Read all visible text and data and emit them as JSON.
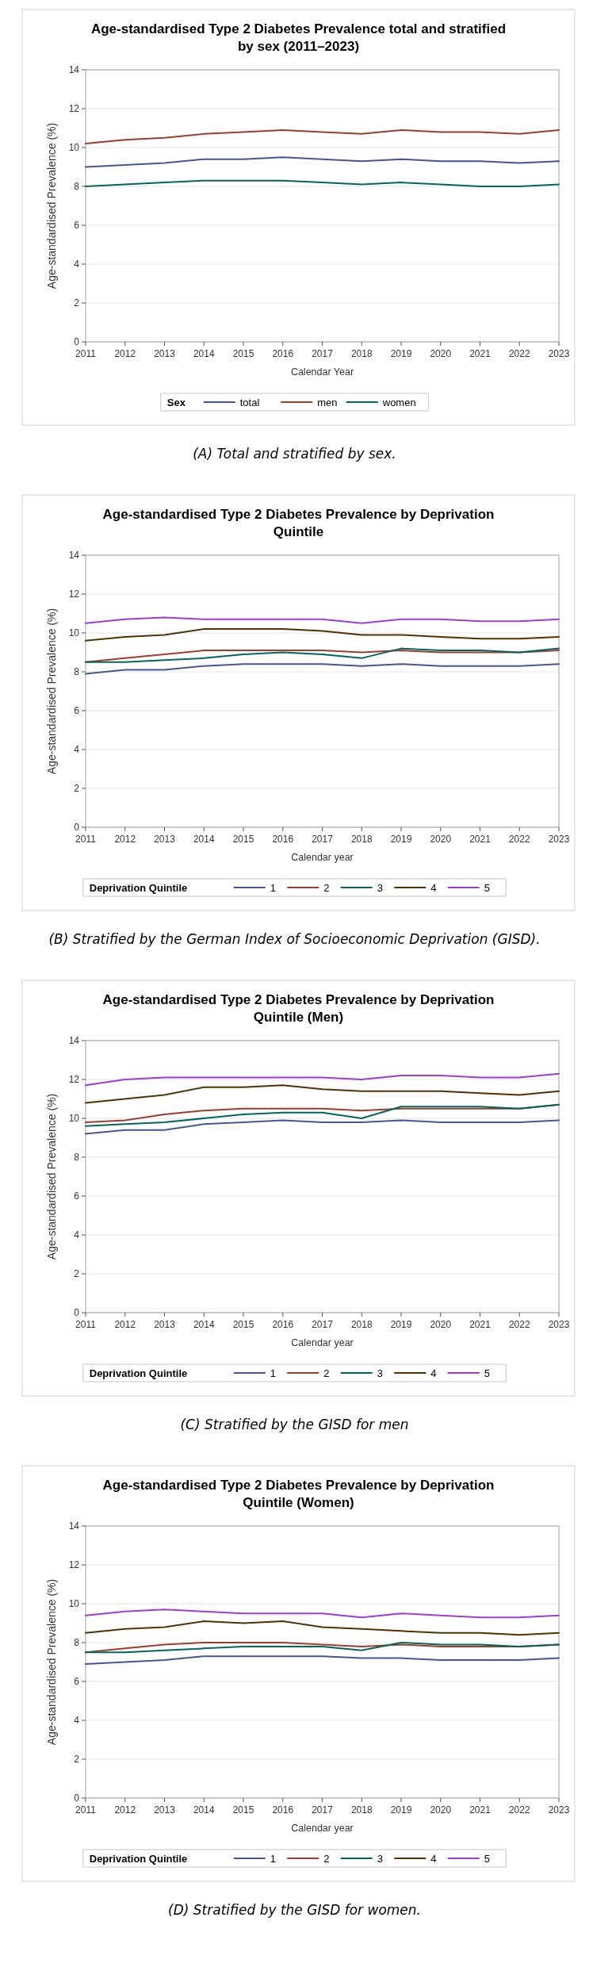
{
  "chart_data": [
    {
      "type": "line",
      "title": "Age-standardised Type 2 Diabetes Prevalence total and stratified by sex (2011–2023)",
      "xlabel": "Calendar Year",
      "ylabel": "Age-standardised Prevalence (%)",
      "legend_title": "Sex",
      "legend": "bottom",
      "grid": "y",
      "line_style": "solid",
      "x": [
        2011,
        2012,
        2013,
        2014,
        2015,
        2016,
        2017,
        2018,
        2019,
        2020,
        2021,
        2022,
        2023
      ],
      "xlim": [
        2011,
        2023
      ],
      "xticks": [
        2011,
        2012,
        2013,
        2014,
        2015,
        2016,
        2017,
        2018,
        2019,
        2020,
        2021,
        2022,
        2023
      ],
      "ylim": [
        0,
        14
      ],
      "yticks": [
        0,
        2,
        4,
        6,
        8,
        10,
        12,
        14
      ],
      "annotations": [
        "(A)  Total and stratified by sex."
      ],
      "series": [
        {
          "name": "total",
          "color": "#445694",
          "values": [
            9.0,
            9.1,
            9.2,
            9.4,
            9.4,
            9.5,
            9.4,
            9.3,
            9.4,
            9.3,
            9.3,
            9.2,
            9.3
          ]
        },
        {
          "name": "men",
          "color": "#a23a2e",
          "values": [
            10.2,
            10.4,
            10.5,
            10.7,
            10.8,
            10.9,
            10.8,
            10.7,
            10.9,
            10.8,
            10.8,
            10.7,
            10.9
          ]
        },
        {
          "name": "women",
          "color": "#01665e",
          "values": [
            8.0,
            8.1,
            8.2,
            8.3,
            8.3,
            8.3,
            8.2,
            8.1,
            8.2,
            8.1,
            8.0,
            8.0,
            8.1
          ]
        }
      ]
    },
    {
      "type": "line",
      "title": "Age-standardised Type 2 Diabetes Prevalence by Deprivation Quintile",
      "xlabel": "Calendar year",
      "ylabel": "Age-standardised Prevalence (%)",
      "legend_title": "Deprivation Quintile",
      "legend": "bottom",
      "grid": "y",
      "line_style": "solid",
      "x": [
        2011,
        2012,
        2013,
        2014,
        2015,
        2016,
        2017,
        2018,
        2019,
        2020,
        2021,
        2022,
        2023
      ],
      "xlim": [
        2011,
        2023
      ],
      "xticks": [
        2011,
        2012,
        2013,
        2014,
        2015,
        2016,
        2017,
        2018,
        2019,
        2020,
        2021,
        2022,
        2023
      ],
      "ylim": [
        0,
        14
      ],
      "yticks": [
        0,
        2,
        4,
        6,
        8,
        10,
        12,
        14
      ],
      "annotations": [
        "(B) Stratified by the German Index of Socioeconomic Deprivation (GISD)."
      ],
      "series": [
        {
          "name": "1",
          "color": "#445694",
          "values": [
            7.9,
            8.1,
            8.1,
            8.3,
            8.4,
            8.4,
            8.4,
            8.3,
            8.4,
            8.3,
            8.3,
            8.3,
            8.4
          ]
        },
        {
          "name": "2",
          "color": "#a23a2e",
          "values": [
            8.5,
            8.7,
            8.9,
            9.1,
            9.1,
            9.1,
            9.1,
            9.0,
            9.1,
            9.0,
            9.0,
            9.0,
            9.1
          ]
        },
        {
          "name": "3",
          "color": "#01665e",
          "values": [
            8.5,
            8.5,
            8.6,
            8.7,
            8.9,
            9.0,
            8.9,
            8.7,
            9.2,
            9.1,
            9.1,
            9.0,
            9.2
          ]
        },
        {
          "name": "4",
          "color": "#543005",
          "values": [
            9.6,
            9.8,
            9.9,
            10.2,
            10.2,
            10.2,
            10.1,
            9.9,
            9.9,
            9.8,
            9.7,
            9.7,
            9.8
          ]
        },
        {
          "name": "5",
          "color": "#9d3cdb",
          "values": [
            10.5,
            10.7,
            10.8,
            10.7,
            10.7,
            10.7,
            10.7,
            10.5,
            10.7,
            10.7,
            10.6,
            10.6,
            10.7
          ]
        }
      ]
    },
    {
      "type": "line",
      "title": "Age-standardised Type 2 Diabetes Prevalence by Deprivation Quintile (Men)",
      "xlabel": "Calendar year",
      "ylabel": "Age-standardised Prevalence (%)",
      "legend_title": "Deprivation Quintile",
      "legend": "bottom",
      "grid": "y",
      "line_style": "solid",
      "x": [
        2011,
        2012,
        2013,
        2014,
        2015,
        2016,
        2017,
        2018,
        2019,
        2020,
        2021,
        2022,
        2023
      ],
      "xlim": [
        2011,
        2023
      ],
      "xticks": [
        2011,
        2012,
        2013,
        2014,
        2015,
        2016,
        2017,
        2018,
        2019,
        2020,
        2021,
        2022,
        2023
      ],
      "ylim": [
        0,
        14
      ],
      "yticks": [
        0,
        2,
        4,
        6,
        8,
        10,
        12,
        14
      ],
      "annotations": [
        "(C) Stratified by the GISD for men"
      ],
      "series": [
        {
          "name": "1",
          "color": "#445694",
          "values": [
            9.2,
            9.4,
            9.4,
            9.7,
            9.8,
            9.9,
            9.8,
            9.8,
            9.9,
            9.8,
            9.8,
            9.8,
            9.9
          ]
        },
        {
          "name": "2",
          "color": "#a23a2e",
          "values": [
            9.8,
            9.9,
            10.2,
            10.4,
            10.5,
            10.5,
            10.5,
            10.4,
            10.5,
            10.5,
            10.5,
            10.5,
            10.7
          ]
        },
        {
          "name": "3",
          "color": "#01665e",
          "values": [
            9.6,
            9.7,
            9.8,
            10.0,
            10.2,
            10.3,
            10.3,
            10.0,
            10.6,
            10.6,
            10.6,
            10.5,
            10.7
          ]
        },
        {
          "name": "4",
          "color": "#543005",
          "values": [
            10.8,
            11.0,
            11.2,
            11.6,
            11.6,
            11.7,
            11.5,
            11.4,
            11.4,
            11.4,
            11.3,
            11.2,
            11.4
          ]
        },
        {
          "name": "5",
          "color": "#9d3cdb",
          "values": [
            11.7,
            12.0,
            12.1,
            12.1,
            12.1,
            12.1,
            12.1,
            12.0,
            12.2,
            12.2,
            12.1,
            12.1,
            12.3
          ]
        }
      ]
    },
    {
      "type": "line",
      "title": "Age-standardised Type 2 Diabetes Prevalence by Deprivation Quintile (Women)",
      "xlabel": "Calendar year",
      "ylabel": "Age-standardised Prevalence (%)",
      "legend_title": "Deprivation Quintile",
      "legend": "bottom",
      "grid": "y",
      "line_style": "solid",
      "x": [
        2011,
        2012,
        2013,
        2014,
        2015,
        2016,
        2017,
        2018,
        2019,
        2020,
        2021,
        2022,
        2023
      ],
      "xlim": [
        2011,
        2023
      ],
      "xticks": [
        2011,
        2012,
        2013,
        2014,
        2015,
        2016,
        2017,
        2018,
        2019,
        2020,
        2021,
        2022,
        2023
      ],
      "ylim": [
        0,
        14
      ],
      "yticks": [
        0,
        2,
        4,
        6,
        8,
        10,
        12,
        14
      ],
      "annotations": [
        "(D) Stratified by the GISD for women."
      ],
      "series": [
        {
          "name": "1",
          "color": "#445694",
          "values": [
            6.9,
            7.0,
            7.1,
            7.3,
            7.3,
            7.3,
            7.3,
            7.2,
            7.2,
            7.1,
            7.1,
            7.1,
            7.2
          ]
        },
        {
          "name": "2",
          "color": "#a23a2e",
          "values": [
            7.5,
            7.7,
            7.9,
            8.0,
            8.0,
            8.0,
            7.9,
            7.8,
            7.9,
            7.8,
            7.8,
            7.8,
            7.9
          ]
        },
        {
          "name": "3",
          "color": "#01665e",
          "values": [
            7.5,
            7.5,
            7.6,
            7.7,
            7.8,
            7.8,
            7.8,
            7.6,
            8.0,
            7.9,
            7.9,
            7.8,
            7.9
          ]
        },
        {
          "name": "4",
          "color": "#543005",
          "values": [
            8.5,
            8.7,
            8.8,
            9.1,
            9.0,
            9.1,
            8.8,
            8.7,
            8.6,
            8.5,
            8.5,
            8.4,
            8.5
          ]
        },
        {
          "name": "5",
          "color": "#9d3cdb",
          "values": [
            9.4,
            9.6,
            9.7,
            9.6,
            9.5,
            9.5,
            9.5,
            9.3,
            9.5,
            9.4,
            9.3,
            9.3,
            9.4
          ]
        }
      ]
    }
  ]
}
